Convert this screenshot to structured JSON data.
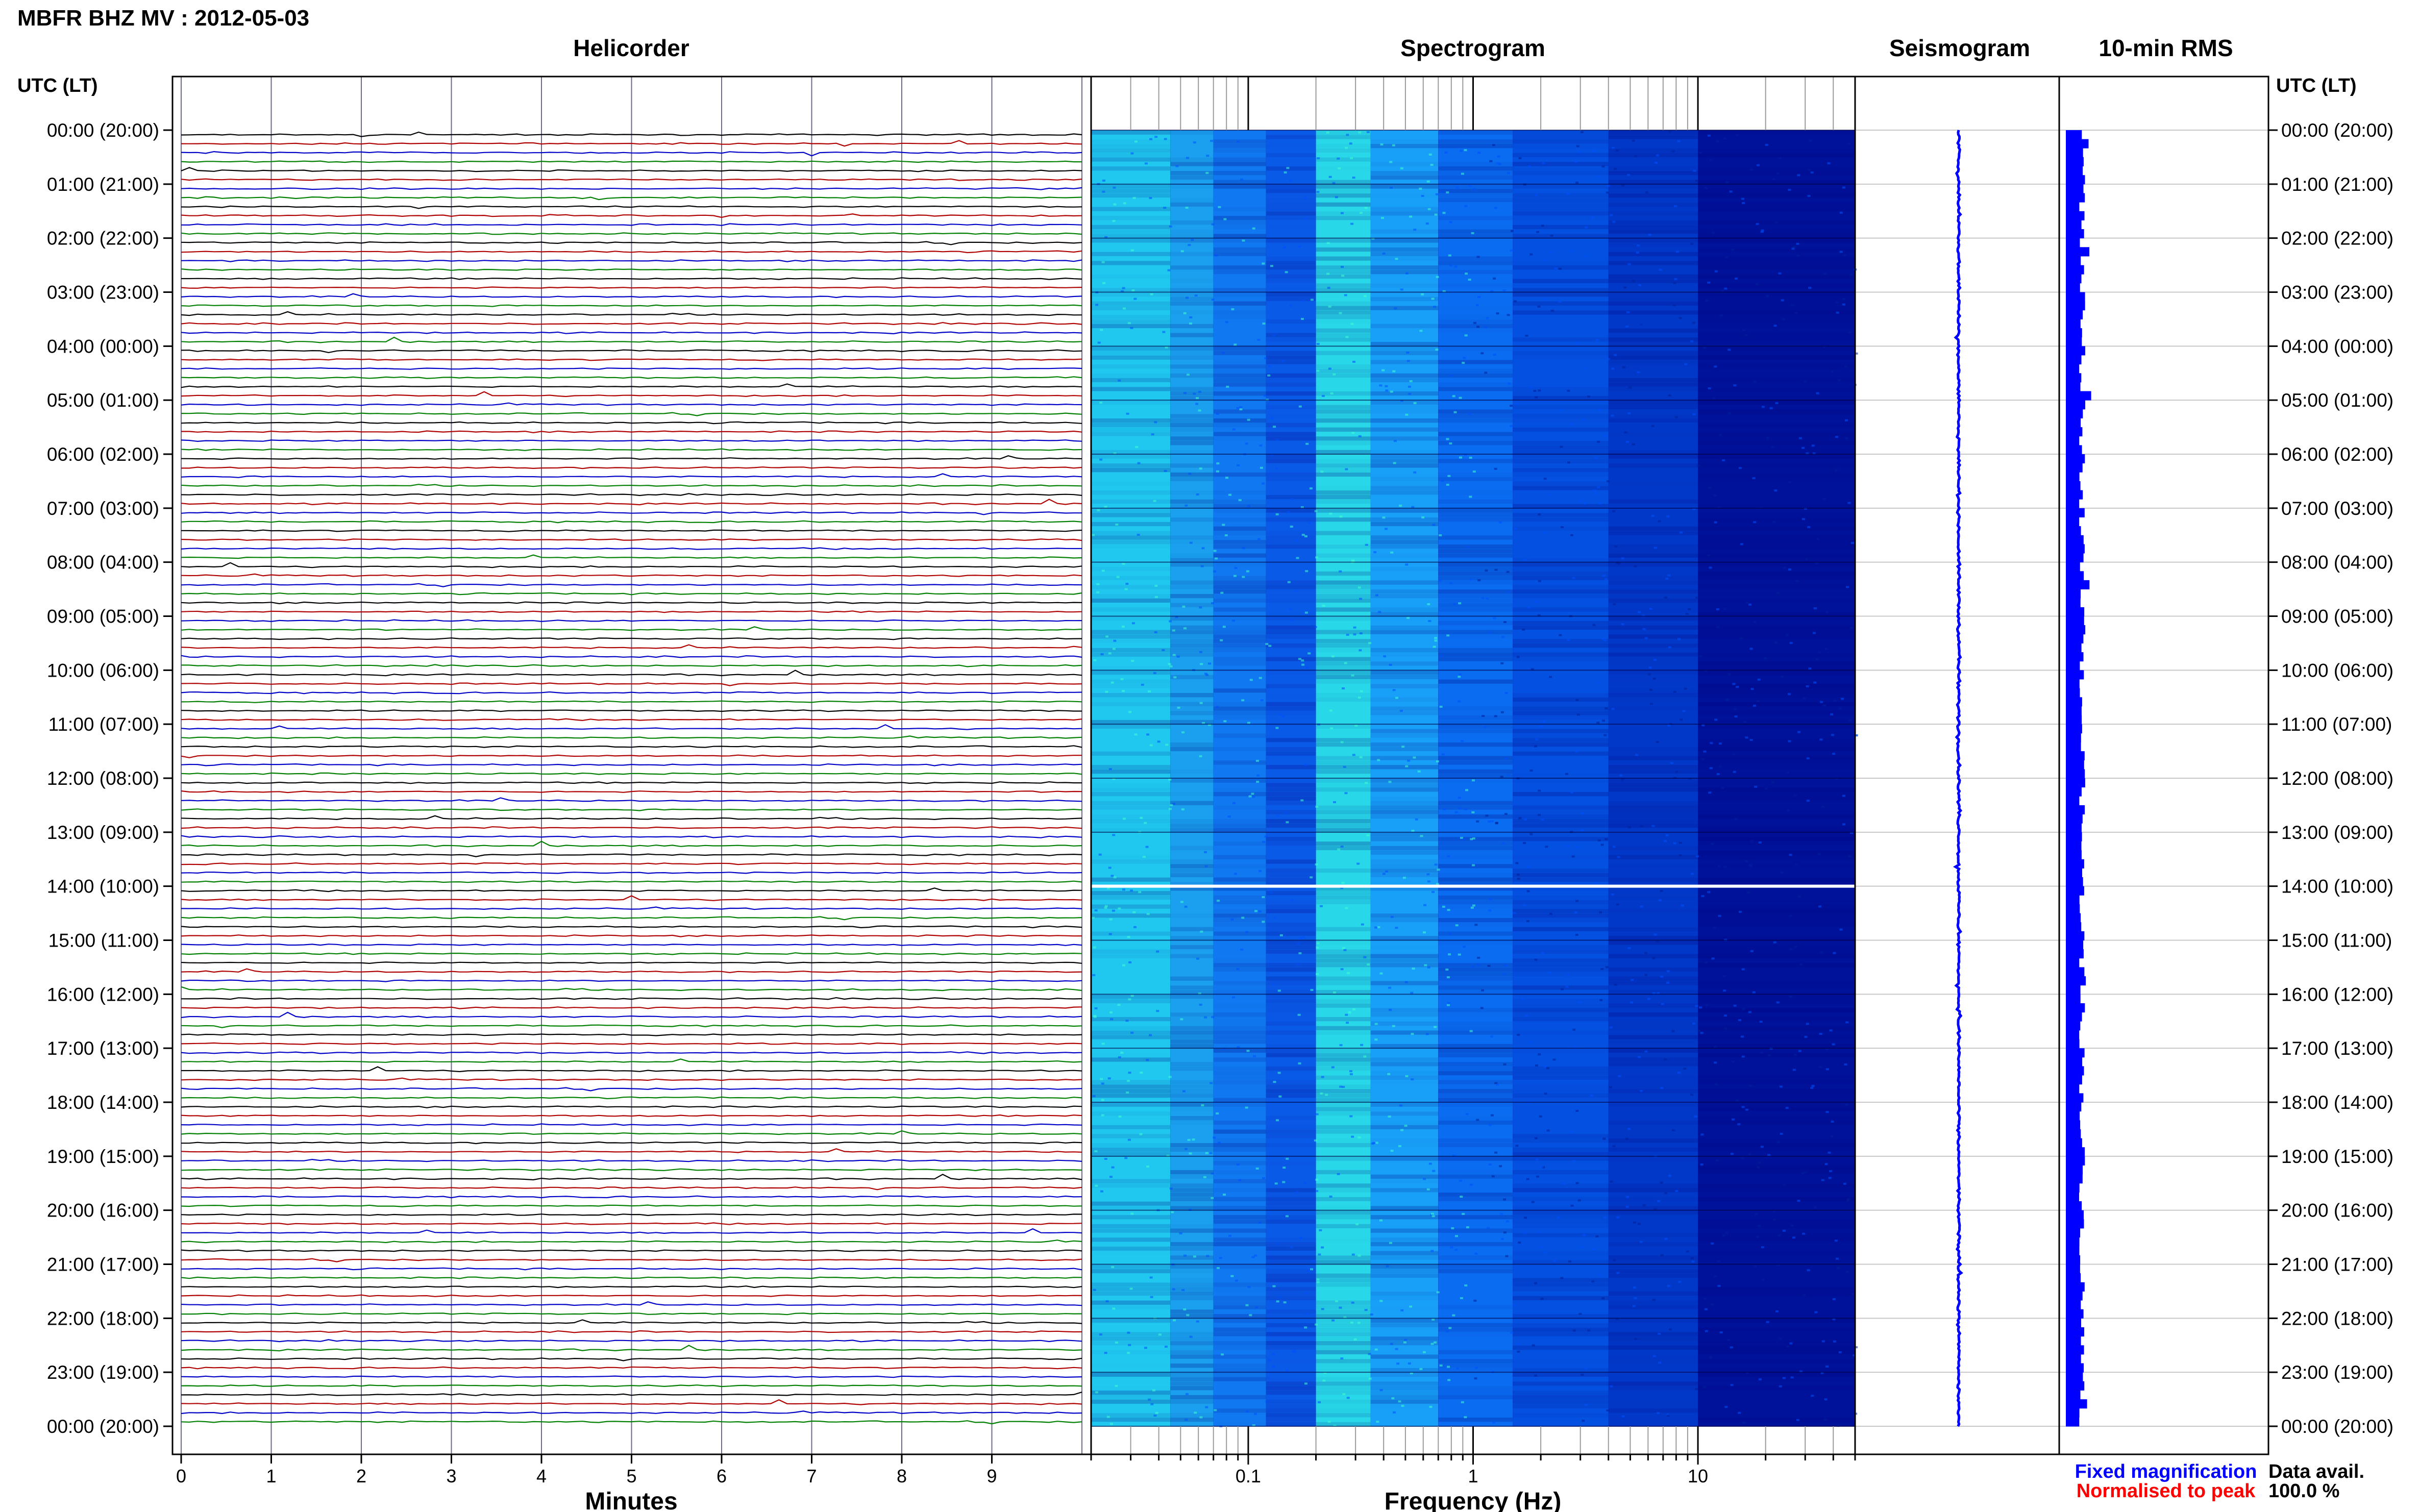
{
  "page_title": "MBFR BHZ MV : 2012-05-03",
  "colors": {
    "trace_cycle": [
      "#000000",
      "#b00000",
      "#0000c8",
      "#008000"
    ],
    "spectrogram_low": "#00007d",
    "spectrogram_mid": "#0050ff",
    "spectrogram_high": "#40ffd0",
    "fixed": "#0000ff",
    "normalised": "#ff0000",
    "frame": "#000000",
    "grid": "#c8c8c8"
  },
  "chart_data": [
    {
      "type": "helicorder",
      "title": "Helicorder",
      "xlabel": "Minutes",
      "x_ticks": [
        "0",
        "1",
        "2",
        "3",
        "4",
        "5",
        "6",
        "7",
        "8",
        "9"
      ],
      "xlim": [
        0,
        10
      ],
      "ylabel": "UTC (LT)",
      "rows_per_hour": 6,
      "hours": 24,
      "y_tick_labels": [
        "00:00 (20:00)",
        "01:00 (21:00)",
        "02:00 (22:00)",
        "03:00 (23:00)",
        "04:00 (00:00)",
        "05:00 (01:00)",
        "06:00 (02:00)",
        "07:00 (03:00)",
        "08:00 (04:00)",
        "09:00 (05:00)",
        "10:00 (06:00)",
        "11:00 (07:00)",
        "12:00 (08:00)",
        "13:00 (09:00)",
        "14:00 (10:00)",
        "15:00 (11:00)",
        "16:00 (12:00)",
        "17:00 (13:00)",
        "18:00 (14:00)",
        "19:00 (15:00)",
        "20:00 (16:00)",
        "21:00 (17:00)",
        "22:00 (18:00)",
        "23:00 (19:00)",
        "00:00 (20:00)"
      ],
      "data_gap_utc": "14:00"
    },
    {
      "type": "heatmap",
      "title": "Spectrogram",
      "xlabel": "Frequency (Hz)",
      "x_scale": "log",
      "xlim": [
        0.02,
        50
      ],
      "x_ticks": [
        "0.1",
        "1",
        "10"
      ],
      "data_gap_utc": "14:00"
    },
    {
      "type": "line",
      "title": "Seismogram",
      "xlim": [
        -1,
        1
      ]
    },
    {
      "type": "bar",
      "title": "10-min RMS",
      "ylabel": "UTC (LT)"
    }
  ],
  "legend": {
    "fixed_label": "Fixed magnification",
    "normalised_label": "Normalised to peak"
  },
  "data_availability": {
    "label": "Data avail.",
    "value": "100.0 %"
  }
}
